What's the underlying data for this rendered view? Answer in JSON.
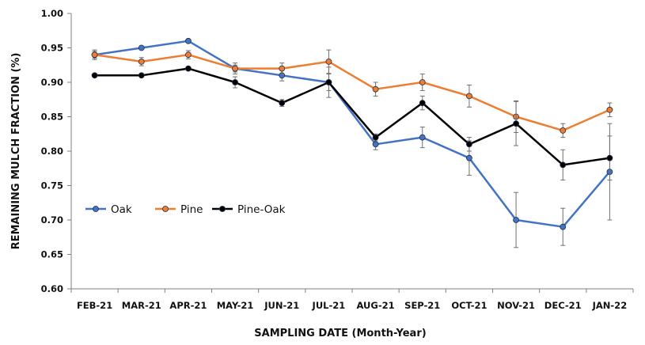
{
  "chart_data": {
    "type": "line",
    "title": "",
    "xlabel": "SAMPLING DATE (Month-Year)",
    "ylabel": "REMAINING MULCH FRACTION (%)",
    "ylim": [
      0.6,
      1.0
    ],
    "yticks": [
      "0.60",
      "0.65",
      "0.70",
      "0.75",
      "0.80",
      "0.85",
      "0.90",
      "0.95",
      "1.00"
    ],
    "ytick_values": [
      0.6,
      0.65,
      0.7,
      0.75,
      0.8,
      0.85,
      0.9,
      0.95,
      1.0
    ],
    "categories": [
      "FEB-21",
      "MAR-21",
      "APR-21",
      "MAY-21",
      "JUN-21",
      "JUL-21",
      "AUG-21",
      "SEP-21",
      "OCT-21",
      "NOV-21",
      "DEC-21",
      "JAN-22"
    ],
    "grid": false,
    "legend_position": "lower-left",
    "series": [
      {
        "name": "Oak",
        "color": "#4472c4",
        "values": [
          0.94,
          0.95,
          0.96,
          0.92,
          0.91,
          0.9,
          0.81,
          0.82,
          0.79,
          0.7,
          0.69,
          0.77
        ],
        "errors": [
          0.005,
          0.0,
          0.0,
          0.005,
          0.008,
          0.012,
          0.008,
          0.015,
          0.025,
          0.04,
          0.027,
          0.07
        ]
      },
      {
        "name": "Pine",
        "color": "#ed7d31",
        "values": [
          0.94,
          0.93,
          0.94,
          0.92,
          0.92,
          0.93,
          0.89,
          0.9,
          0.88,
          0.85,
          0.83,
          0.86
        ],
        "errors": [
          0.007,
          0.006,
          0.006,
          0.008,
          0.008,
          0.017,
          0.01,
          0.012,
          0.016,
          0.023,
          0.01,
          0.01
        ]
      },
      {
        "name": "Pine-Oak",
        "color": "#000000",
        "values": [
          0.91,
          0.91,
          0.92,
          0.9,
          0.87,
          0.9,
          0.82,
          0.87,
          0.81,
          0.84,
          0.78,
          0.79
        ],
        "errors": [
          0.0,
          0.0,
          0.0,
          0.008,
          0.005,
          0.022,
          0.005,
          0.01,
          0.01,
          0.032,
          0.022,
          0.032
        ]
      }
    ]
  }
}
